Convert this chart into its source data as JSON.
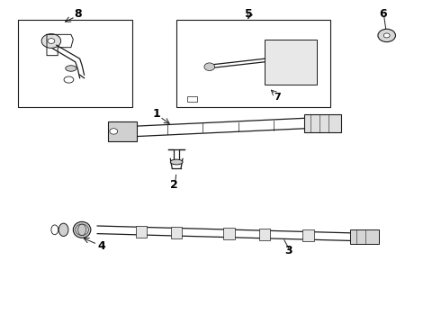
{
  "bg_color": "#ffffff",
  "line_color": "#1a1a1a",
  "label_color": "#000000",
  "fig_width": 4.9,
  "fig_height": 3.6,
  "dpi": 100
}
